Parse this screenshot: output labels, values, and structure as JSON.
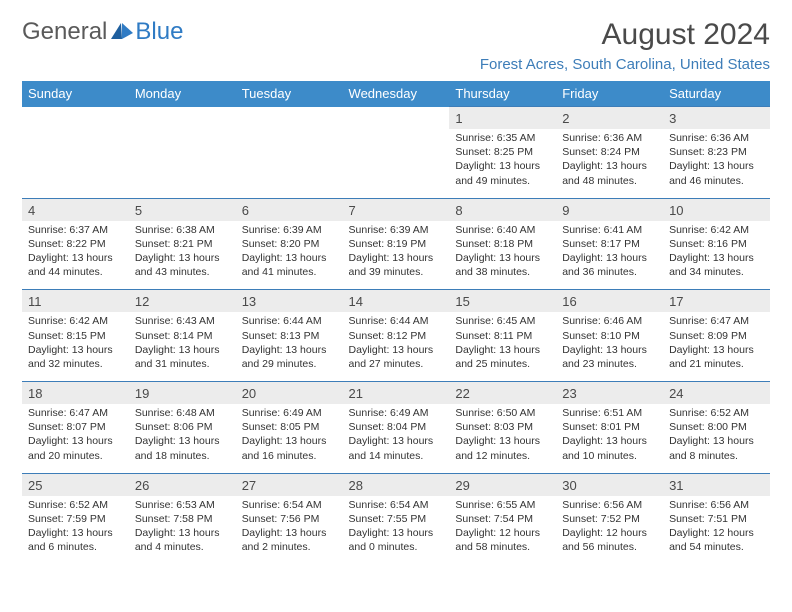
{
  "brand": {
    "part1": "General",
    "part2": "Blue"
  },
  "title": "August 2024",
  "location": "Forest Acres, South Carolina, United States",
  "colors": {
    "header_bg": "#3d8bc9",
    "header_text": "#ffffff",
    "daynum_bg": "#ececec",
    "border": "#3d7db8",
    "brand_blue": "#2f7bc4",
    "text": "#333333"
  },
  "weekdays": [
    "Sunday",
    "Monday",
    "Tuesday",
    "Wednesday",
    "Thursday",
    "Friday",
    "Saturday"
  ],
  "weeks": [
    {
      "nums": [
        "",
        "",
        "",
        "",
        "1",
        "2",
        "3"
      ],
      "cells": [
        {
          "empty": true
        },
        {
          "empty": true
        },
        {
          "empty": true
        },
        {
          "empty": true
        },
        {
          "sunrise": "Sunrise: 6:35 AM",
          "sunset": "Sunset: 8:25 PM",
          "daylight1": "Daylight: 13 hours",
          "daylight2": "and 49 minutes."
        },
        {
          "sunrise": "Sunrise: 6:36 AM",
          "sunset": "Sunset: 8:24 PM",
          "daylight1": "Daylight: 13 hours",
          "daylight2": "and 48 minutes."
        },
        {
          "sunrise": "Sunrise: 6:36 AM",
          "sunset": "Sunset: 8:23 PM",
          "daylight1": "Daylight: 13 hours",
          "daylight2": "and 46 minutes."
        }
      ]
    },
    {
      "nums": [
        "4",
        "5",
        "6",
        "7",
        "8",
        "9",
        "10"
      ],
      "cells": [
        {
          "sunrise": "Sunrise: 6:37 AM",
          "sunset": "Sunset: 8:22 PM",
          "daylight1": "Daylight: 13 hours",
          "daylight2": "and 44 minutes."
        },
        {
          "sunrise": "Sunrise: 6:38 AM",
          "sunset": "Sunset: 8:21 PM",
          "daylight1": "Daylight: 13 hours",
          "daylight2": "and 43 minutes."
        },
        {
          "sunrise": "Sunrise: 6:39 AM",
          "sunset": "Sunset: 8:20 PM",
          "daylight1": "Daylight: 13 hours",
          "daylight2": "and 41 minutes."
        },
        {
          "sunrise": "Sunrise: 6:39 AM",
          "sunset": "Sunset: 8:19 PM",
          "daylight1": "Daylight: 13 hours",
          "daylight2": "and 39 minutes."
        },
        {
          "sunrise": "Sunrise: 6:40 AM",
          "sunset": "Sunset: 8:18 PM",
          "daylight1": "Daylight: 13 hours",
          "daylight2": "and 38 minutes."
        },
        {
          "sunrise": "Sunrise: 6:41 AM",
          "sunset": "Sunset: 8:17 PM",
          "daylight1": "Daylight: 13 hours",
          "daylight2": "and 36 minutes."
        },
        {
          "sunrise": "Sunrise: 6:42 AM",
          "sunset": "Sunset: 8:16 PM",
          "daylight1": "Daylight: 13 hours",
          "daylight2": "and 34 minutes."
        }
      ]
    },
    {
      "nums": [
        "11",
        "12",
        "13",
        "14",
        "15",
        "16",
        "17"
      ],
      "cells": [
        {
          "sunrise": "Sunrise: 6:42 AM",
          "sunset": "Sunset: 8:15 PM",
          "daylight1": "Daylight: 13 hours",
          "daylight2": "and 32 minutes."
        },
        {
          "sunrise": "Sunrise: 6:43 AM",
          "sunset": "Sunset: 8:14 PM",
          "daylight1": "Daylight: 13 hours",
          "daylight2": "and 31 minutes."
        },
        {
          "sunrise": "Sunrise: 6:44 AM",
          "sunset": "Sunset: 8:13 PM",
          "daylight1": "Daylight: 13 hours",
          "daylight2": "and 29 minutes."
        },
        {
          "sunrise": "Sunrise: 6:44 AM",
          "sunset": "Sunset: 8:12 PM",
          "daylight1": "Daylight: 13 hours",
          "daylight2": "and 27 minutes."
        },
        {
          "sunrise": "Sunrise: 6:45 AM",
          "sunset": "Sunset: 8:11 PM",
          "daylight1": "Daylight: 13 hours",
          "daylight2": "and 25 minutes."
        },
        {
          "sunrise": "Sunrise: 6:46 AM",
          "sunset": "Sunset: 8:10 PM",
          "daylight1": "Daylight: 13 hours",
          "daylight2": "and 23 minutes."
        },
        {
          "sunrise": "Sunrise: 6:47 AM",
          "sunset": "Sunset: 8:09 PM",
          "daylight1": "Daylight: 13 hours",
          "daylight2": "and 21 minutes."
        }
      ]
    },
    {
      "nums": [
        "18",
        "19",
        "20",
        "21",
        "22",
        "23",
        "24"
      ],
      "cells": [
        {
          "sunrise": "Sunrise: 6:47 AM",
          "sunset": "Sunset: 8:07 PM",
          "daylight1": "Daylight: 13 hours",
          "daylight2": "and 20 minutes."
        },
        {
          "sunrise": "Sunrise: 6:48 AM",
          "sunset": "Sunset: 8:06 PM",
          "daylight1": "Daylight: 13 hours",
          "daylight2": "and 18 minutes."
        },
        {
          "sunrise": "Sunrise: 6:49 AM",
          "sunset": "Sunset: 8:05 PM",
          "daylight1": "Daylight: 13 hours",
          "daylight2": "and 16 minutes."
        },
        {
          "sunrise": "Sunrise: 6:49 AM",
          "sunset": "Sunset: 8:04 PM",
          "daylight1": "Daylight: 13 hours",
          "daylight2": "and 14 minutes."
        },
        {
          "sunrise": "Sunrise: 6:50 AM",
          "sunset": "Sunset: 8:03 PM",
          "daylight1": "Daylight: 13 hours",
          "daylight2": "and 12 minutes."
        },
        {
          "sunrise": "Sunrise: 6:51 AM",
          "sunset": "Sunset: 8:01 PM",
          "daylight1": "Daylight: 13 hours",
          "daylight2": "and 10 minutes."
        },
        {
          "sunrise": "Sunrise: 6:52 AM",
          "sunset": "Sunset: 8:00 PM",
          "daylight1": "Daylight: 13 hours",
          "daylight2": "and 8 minutes."
        }
      ]
    },
    {
      "nums": [
        "25",
        "26",
        "27",
        "28",
        "29",
        "30",
        "31"
      ],
      "cells": [
        {
          "sunrise": "Sunrise: 6:52 AM",
          "sunset": "Sunset: 7:59 PM",
          "daylight1": "Daylight: 13 hours",
          "daylight2": "and 6 minutes."
        },
        {
          "sunrise": "Sunrise: 6:53 AM",
          "sunset": "Sunset: 7:58 PM",
          "daylight1": "Daylight: 13 hours",
          "daylight2": "and 4 minutes."
        },
        {
          "sunrise": "Sunrise: 6:54 AM",
          "sunset": "Sunset: 7:56 PM",
          "daylight1": "Daylight: 13 hours",
          "daylight2": "and 2 minutes."
        },
        {
          "sunrise": "Sunrise: 6:54 AM",
          "sunset": "Sunset: 7:55 PM",
          "daylight1": "Daylight: 13 hours",
          "daylight2": "and 0 minutes."
        },
        {
          "sunrise": "Sunrise: 6:55 AM",
          "sunset": "Sunset: 7:54 PM",
          "daylight1": "Daylight: 12 hours",
          "daylight2": "and 58 minutes."
        },
        {
          "sunrise": "Sunrise: 6:56 AM",
          "sunset": "Sunset: 7:52 PM",
          "daylight1": "Daylight: 12 hours",
          "daylight2": "and 56 minutes."
        },
        {
          "sunrise": "Sunrise: 6:56 AM",
          "sunset": "Sunset: 7:51 PM",
          "daylight1": "Daylight: 12 hours",
          "daylight2": "and 54 minutes."
        }
      ]
    }
  ]
}
